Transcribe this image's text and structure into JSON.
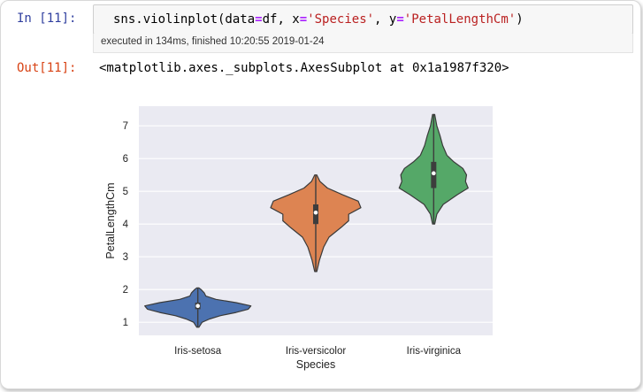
{
  "cell": {
    "in_prompt": "In [11]:",
    "code": {
      "t1": "sns.violinplot(data",
      "t2": "=",
      "t3": "df, x",
      "t4": "=",
      "t5": "'Species'",
      "t6": ", y",
      "t7": "=",
      "t8": "'PetalLengthCm'",
      "t9": ")"
    },
    "exec_status": "executed in 134ms, finished 10:20:55 2019-01-24",
    "out_prompt": "Out[11]:",
    "out_text": "<matplotlib.axes._subplots.AxesSubplot at 0x1a1987f320>"
  },
  "chart_data": {
    "type": "violin",
    "categories": [
      "Iris-setosa",
      "Iris-versicolor",
      "Iris-virginica"
    ],
    "xlabel": "Species",
    "ylabel": "PetalLengthCm",
    "ylim": [
      0.6,
      7.6
    ],
    "yticks": [
      1,
      2,
      3,
      4,
      5,
      6,
      7
    ],
    "grid": true,
    "background": "#eaeaf2",
    "series": [
      {
        "color": "#4c72b0",
        "min": 0.85,
        "max": 2.05,
        "q1": 1.4,
        "median": 1.5,
        "q3": 1.6,
        "profile": [
          [
            0.85,
            0.02
          ],
          [
            1.0,
            0.08
          ],
          [
            1.1,
            0.22
          ],
          [
            1.2,
            0.42
          ],
          [
            1.3,
            0.72
          ],
          [
            1.4,
            0.95
          ],
          [
            1.5,
            1.0
          ],
          [
            1.6,
            0.72
          ],
          [
            1.7,
            0.34
          ],
          [
            1.8,
            0.15
          ],
          [
            1.9,
            0.12
          ],
          [
            2.0,
            0.06
          ],
          [
            2.05,
            0.02
          ]
        ]
      },
      {
        "color": "#dd8452",
        "min": 2.55,
        "max": 5.5,
        "q1": 4.0,
        "median": 4.35,
        "q3": 4.6,
        "profile": [
          [
            2.55,
            0.02
          ],
          [
            2.9,
            0.07
          ],
          [
            3.3,
            0.15
          ],
          [
            3.6,
            0.25
          ],
          [
            3.9,
            0.48
          ],
          [
            4.1,
            0.62
          ],
          [
            4.3,
            0.62
          ],
          [
            4.5,
            0.85
          ],
          [
            4.7,
            0.8
          ],
          [
            4.9,
            0.5
          ],
          [
            5.1,
            0.22
          ],
          [
            5.3,
            0.08
          ],
          [
            5.5,
            0.02
          ]
        ]
      },
      {
        "color": "#55a868",
        "min": 4.0,
        "max": 7.35,
        "q1": 5.1,
        "median": 5.55,
        "q3": 5.9,
        "profile": [
          [
            4.0,
            0.02
          ],
          [
            4.3,
            0.06
          ],
          [
            4.6,
            0.18
          ],
          [
            4.9,
            0.45
          ],
          [
            5.1,
            0.65
          ],
          [
            5.3,
            0.6
          ],
          [
            5.5,
            0.62
          ],
          [
            5.7,
            0.55
          ],
          [
            5.9,
            0.38
          ],
          [
            6.1,
            0.25
          ],
          [
            6.4,
            0.17
          ],
          [
            6.7,
            0.12
          ],
          [
            7.0,
            0.06
          ],
          [
            7.35,
            0.02
          ]
        ]
      }
    ]
  }
}
